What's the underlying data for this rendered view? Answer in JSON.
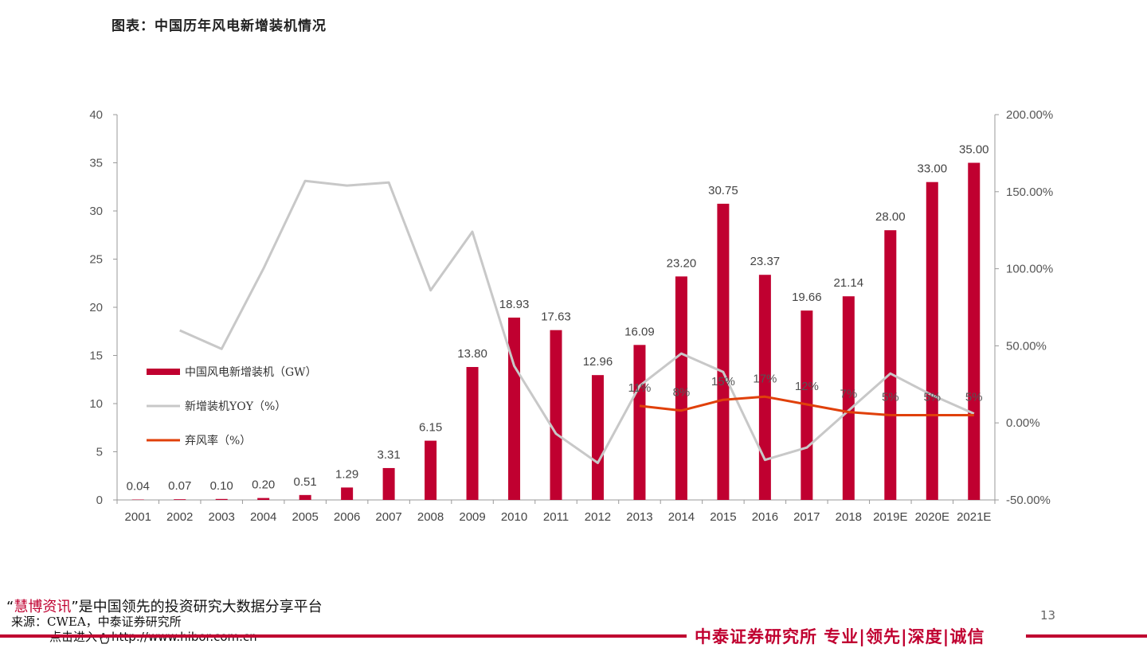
{
  "header": {
    "title": "图表：中国历年风电新增装机情况"
  },
  "chart_data": {
    "type": "bar",
    "title": "图表：中国历年风电新增装机情况",
    "categories": [
      "2001",
      "2002",
      "2003",
      "2004",
      "2005",
      "2006",
      "2007",
      "2008",
      "2009",
      "2010",
      "2011",
      "2012",
      "2013",
      "2014",
      "2015",
      "2016",
      "2017",
      "2018",
      "2019E",
      "2020E",
      "2021E"
    ],
    "y_left": {
      "min": 0,
      "max": 40,
      "ticks": [
        "0",
        "5",
        "10",
        "15",
        "20",
        "25",
        "30",
        "35",
        "40"
      ]
    },
    "y_right": {
      "min": -50,
      "max": 200,
      "ticks": [
        "-50.00%",
        "0.00%",
        "50.00%",
        "100.00%",
        "150.00%",
        "200.00%"
      ]
    },
    "series": [
      {
        "name": "中国风电新增装机（GW）",
        "kind": "bar",
        "axis": "left",
        "color": "#c00030",
        "values": [
          0.04,
          0.07,
          0.1,
          0.2,
          0.51,
          1.29,
          3.31,
          6.15,
          13.8,
          18.93,
          17.63,
          12.96,
          16.09,
          23.2,
          30.75,
          23.37,
          19.66,
          21.14,
          28.0,
          33.0,
          35.0
        ],
        "labels": [
          "0.04",
          "0.07",
          "0.10",
          "0.20",
          "0.51",
          "1.29",
          "3.31",
          "6.15",
          "13.80",
          "18.93",
          "17.63",
          "12.96",
          "16.09",
          "23.20",
          "30.75",
          "23.37",
          "19.66",
          "21.14",
          "28.00",
          "33.00",
          "35.00"
        ]
      },
      {
        "name": "新增装机YOY（%）",
        "kind": "line",
        "axis": "right",
        "color": "#c8c8c8",
        "values": [
          null,
          60,
          48,
          100,
          157,
          154,
          156,
          86,
          124,
          37,
          -7,
          -26,
          24,
          45,
          33,
          -24,
          -16,
          8,
          32,
          18,
          6
        ]
      },
      {
        "name": "弃风率（%）",
        "kind": "line",
        "axis": "right",
        "color": "#e0400a",
        "values": [
          null,
          null,
          null,
          null,
          null,
          null,
          null,
          null,
          null,
          null,
          null,
          null,
          11,
          8,
          15,
          17,
          12,
          7,
          5,
          5,
          5
        ],
        "labels": [
          null,
          null,
          null,
          null,
          null,
          null,
          null,
          null,
          null,
          null,
          null,
          null,
          "11%",
          "8%",
          "15%",
          "17%",
          "12%",
          "7%",
          "5%",
          "5%",
          "5%"
        ]
      }
    ],
    "legend_position": "left-middle"
  },
  "footer": {
    "promo_quote_open": "“",
    "promo_brand": "慧博资讯",
    "promo_rest": "”是中国领先的投资研究大数据分享平台",
    "source": "来源：CWEA，中泰证券研究所",
    "link_prefix": "点击进入",
    "link_url": "http://www.hibor.com.cn",
    "page_number": "13",
    "slogan": "中泰证券研究所  专业|领先|深度|诚信"
  }
}
